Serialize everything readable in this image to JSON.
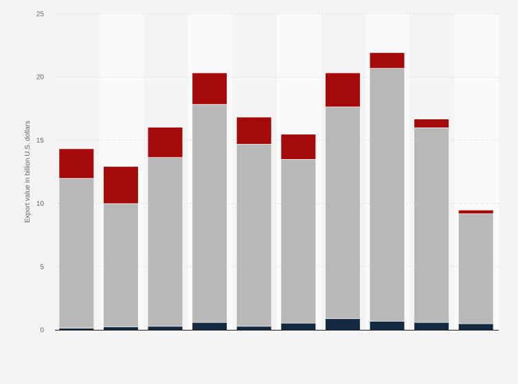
{
  "chart_data": {
    "type": "bar",
    "stacked": true,
    "title": "",
    "xlabel": "",
    "ylabel": "Export value in billion U.S. dollars",
    "ylim": [
      0,
      25
    ],
    "yticks": [
      0,
      5,
      10,
      15,
      20,
      25
    ],
    "grid": true,
    "legend": "none",
    "categories": [
      "",
      "",
      "",
      "",
      "",
      "",
      "",
      "",
      "",
      ""
    ],
    "series": [
      {
        "color": "#14283f",
        "values": [
          0.15,
          0.25,
          0.3,
          0.6,
          0.3,
          0.55,
          0.9,
          0.7,
          0.6,
          0.5
        ]
      },
      {
        "color": "#b8b8b8",
        "values": [
          11.85,
          9.75,
          13.35,
          17.25,
          14.4,
          12.95,
          16.75,
          20.0,
          15.4,
          8.7
        ]
      },
      {
        "color": "#a50a0a",
        "values": [
          2.3,
          2.9,
          2.35,
          2.45,
          2.1,
          1.95,
          2.65,
          1.2,
          0.65,
          0.25
        ]
      }
    ]
  }
}
